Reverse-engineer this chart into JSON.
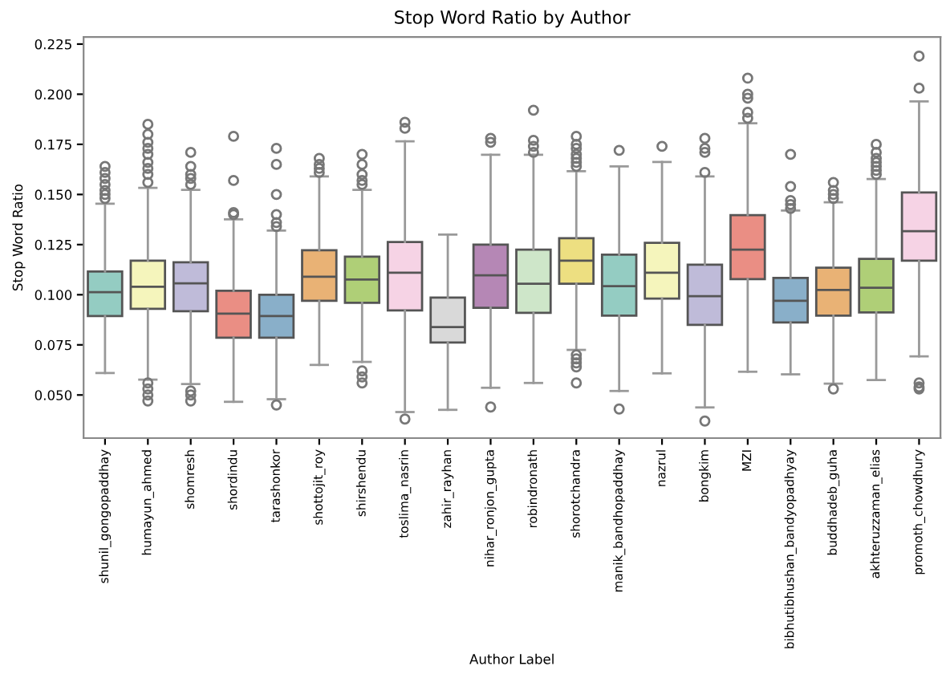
{
  "chart_data": {
    "type": "box",
    "title": "Stop Word Ratio by Author",
    "xlabel": "Author Label",
    "ylabel": "Stop Word Ratio",
    "categories": [
      "shunil_gongopaddhay",
      "humayun_ahmed",
      "shomresh",
      "shordindu",
      "tarashonkor",
      "shottojit_roy",
      "shirshendu",
      "toslima_nasrin",
      "zahir_rayhan",
      "nihar_ronjon_gupta",
      "robindronath",
      "shorotchandra",
      "manik_bandhopaddhay",
      "nazrul",
      "bongkim",
      "MZI",
      "bibhutibhushan_bandyopadhyay",
      "buddhadeb_guha",
      "akhteruzzaman_elias",
      "promoth_chowdhury"
    ],
    "colors": [
      "#94ccc2",
      "#f5f5bc",
      "#bfbbd9",
      "#ea8e84",
      "#89afc9",
      "#e9b275",
      "#afcf77",
      "#f6d3e5",
      "#d9d9d9",
      "#b587b5",
      "#cee6c9",
      "#eddf81",
      "#94ccc2",
      "#f5f5bc",
      "#bfbbd9",
      "#ea8e84",
      "#89afc9",
      "#e9b275",
      "#afcf77",
      "#f6d3e5"
    ],
    "boxes": [
      {
        "low": 0.061,
        "q1": 0.0894,
        "median": 0.1013,
        "q3": 0.1116,
        "high": 0.1454,
        "outliers": [
          0.148,
          0.15,
          0.152,
          0.155,
          0.158,
          0.161,
          0.164
        ]
      },
      {
        "low": 0.0577,
        "q1": 0.093,
        "median": 0.104,
        "q3": 0.117,
        "high": 0.1533,
        "outliers": [
          0.156,
          0.16,
          0.163,
          0.166,
          0.17,
          0.173,
          0.176,
          0.18,
          0.185,
          0.056,
          0.053,
          0.05,
          0.047
        ]
      },
      {
        "low": 0.0555,
        "q1": 0.0918,
        "median": 0.1057,
        "q3": 0.1162,
        "high": 0.1523,
        "outliers": [
          0.155,
          0.158,
          0.16,
          0.164,
          0.171,
          0.052,
          0.05,
          0.047
        ]
      },
      {
        "low": 0.0466,
        "q1": 0.0786,
        "median": 0.0906,
        "q3": 0.102,
        "high": 0.1376,
        "outliers": [
          0.14,
          0.141,
          0.157,
          0.179
        ]
      },
      {
        "low": 0.0479,
        "q1": 0.0786,
        "median": 0.0894,
        "q3": 0.1,
        "high": 0.132,
        "outliers": [
          0.134,
          0.136,
          0.14,
          0.15,
          0.165,
          0.173,
          0.045
        ]
      },
      {
        "low": 0.065,
        "q1": 0.097,
        "median": 0.109,
        "q3": 0.1222,
        "high": 0.159,
        "outliers": [
          0.161,
          0.163,
          0.165,
          0.168
        ]
      },
      {
        "low": 0.0665,
        "q1": 0.096,
        "median": 0.1076,
        "q3": 0.119,
        "high": 0.1523,
        "outliers": [
          0.155,
          0.157,
          0.16,
          0.165,
          0.17,
          0.062,
          0.059,
          0.056
        ]
      },
      {
        "low": 0.0415,
        "q1": 0.0922,
        "median": 0.111,
        "q3": 0.1263,
        "high": 0.1765,
        "outliers": [
          0.183,
          0.186,
          0.038
        ]
      },
      {
        "low": 0.0426,
        "q1": 0.0762,
        "median": 0.0839,
        "q3": 0.0986,
        "high": 0.13
      },
      {
        "low": 0.0536,
        "q1": 0.0935,
        "median": 0.1097,
        "q3": 0.125,
        "high": 0.1698,
        "outliers": [
          0.176,
          0.178,
          0.044
        ]
      },
      {
        "low": 0.056,
        "q1": 0.091,
        "median": 0.1055,
        "q3": 0.1225,
        "high": 0.1698,
        "outliers": [
          0.171,
          0.174,
          0.177,
          0.192
        ]
      },
      {
        "low": 0.0725,
        "q1": 0.1055,
        "median": 0.117,
        "q3": 0.1282,
        "high": 0.1616,
        "outliers": [
          0.164,
          0.166,
          0.168,
          0.17,
          0.173,
          0.175,
          0.179,
          0.07,
          0.068,
          0.066,
          0.064,
          0.056
        ]
      },
      {
        "low": 0.052,
        "q1": 0.0896,
        "median": 0.1043,
        "q3": 0.12,
        "high": 0.164,
        "outliers": [
          0.172,
          0.043
        ]
      },
      {
        "low": 0.0608,
        "q1": 0.0981,
        "median": 0.111,
        "q3": 0.1259,
        "high": 0.1662,
        "outliers": [
          0.174
        ]
      },
      {
        "low": 0.0438,
        "q1": 0.085,
        "median": 0.0993,
        "q3": 0.115,
        "high": 0.159,
        "outliers": [
          0.161,
          0.171,
          0.173,
          0.178,
          0.037
        ]
      },
      {
        "low": 0.0616,
        "q1": 0.1078,
        "median": 0.1225,
        "q3": 0.1397,
        "high": 0.1855,
        "outliers": [
          0.188,
          0.191,
          0.198,
          0.2,
          0.208
        ]
      },
      {
        "low": 0.0603,
        "q1": 0.0862,
        "median": 0.097,
        "q3": 0.1084,
        "high": 0.142,
        "outliers": [
          0.143,
          0.145,
          0.147,
          0.154,
          0.17
        ]
      },
      {
        "low": 0.0557,
        "q1": 0.0896,
        "median": 0.1024,
        "q3": 0.1135,
        "high": 0.1461,
        "outliers": [
          0.148,
          0.15,
          0.152,
          0.156,
          0.053
        ]
      },
      {
        "low": 0.0575,
        "q1": 0.0912,
        "median": 0.1035,
        "q3": 0.1179,
        "high": 0.1577,
        "outliers": [
          0.16,
          0.162,
          0.164,
          0.166,
          0.168,
          0.171,
          0.175
        ]
      },
      {
        "low": 0.0693,
        "q1": 0.117,
        "median": 0.1317,
        "q3": 0.151,
        "high": 0.1964,
        "outliers": [
          0.203,
          0.219,
          0.056,
          0.054,
          0.053
        ]
      }
    ],
    "ylim": [
      0.0285,
      0.2285
    ],
    "yticks": [
      {
        "value": 0.05,
        "label": "0.050"
      },
      {
        "value": 0.075,
        "label": "0.075"
      },
      {
        "value": 0.1,
        "label": "0.100"
      },
      {
        "value": 0.125,
        "label": "0.125"
      },
      {
        "value": 0.15,
        "label": "0.150"
      },
      {
        "value": 0.175,
        "label": "0.175"
      },
      {
        "value": 0.2,
        "label": "0.200"
      },
      {
        "value": 0.225,
        "label": "0.225"
      }
    ],
    "grid": false,
    "legend": false,
    "marker": "circle"
  }
}
